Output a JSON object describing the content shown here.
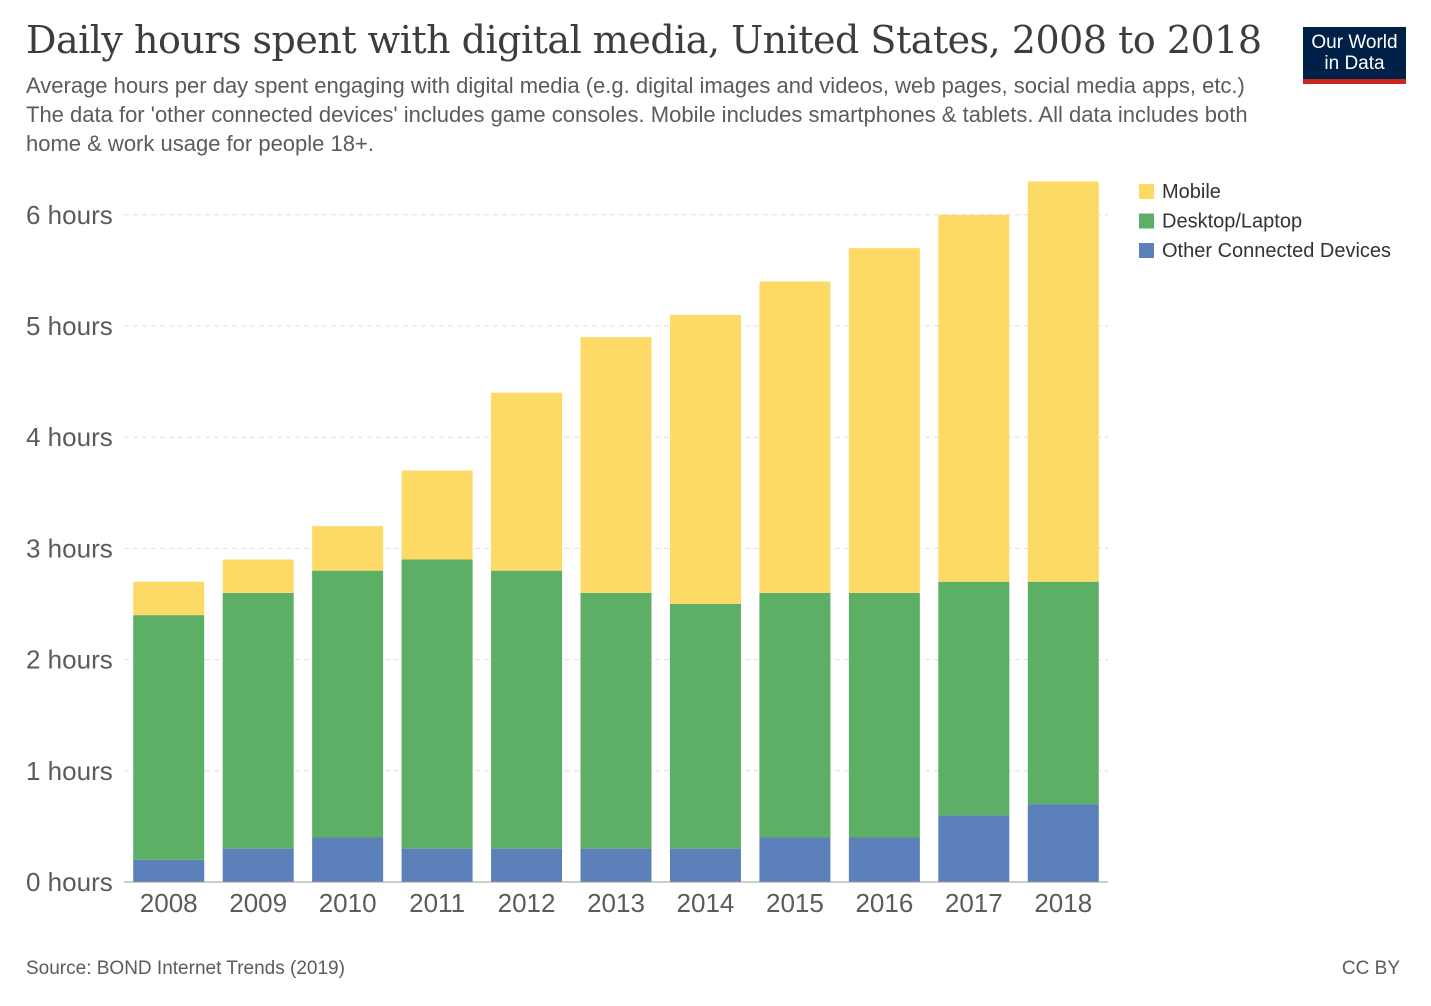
{
  "header": {
    "title": "Daily hours spent with digital media, United States, 2008 to 2018",
    "subtitle": "Average hours per day spent engaging with digital media (e.g. digital images and videos, web pages, social media apps, etc.) The data for 'other connected devices' includes game consoles. Mobile includes smartphones & tablets. All data includes both home & work usage for people 18+.",
    "logo_line1": "Our World",
    "logo_line2": "in Data"
  },
  "footer": {
    "source": "Source: BOND Internet Trends (2019)",
    "license": "CC BY"
  },
  "colors": {
    "Mobile": "#fdd966",
    "Desktop/Laptop": "#5daf66",
    "Other Connected Devices": "#5b80ba"
  },
  "chart_data": {
    "type": "bar",
    "stacked": true,
    "categories": [
      "2008",
      "2009",
      "2010",
      "2011",
      "2012",
      "2013",
      "2014",
      "2015",
      "2016",
      "2017",
      "2018"
    ],
    "series": [
      {
        "name": "Other Connected Devices",
        "values": [
          0.2,
          0.3,
          0.4,
          0.3,
          0.3,
          0.3,
          0.3,
          0.4,
          0.4,
          0.6,
          0.7
        ]
      },
      {
        "name": "Desktop/Laptop",
        "values": [
          2.2,
          2.3,
          2.4,
          2.6,
          2.5,
          2.3,
          2.2,
          2.2,
          2.2,
          2.1,
          2.0
        ]
      },
      {
        "name": "Mobile",
        "values": [
          0.3,
          0.3,
          0.4,
          0.8,
          1.6,
          2.3,
          2.6,
          2.8,
          3.1,
          3.3,
          3.6
        ]
      }
    ],
    "legend": [
      "Mobile",
      "Desktop/Laptop",
      "Other Connected Devices"
    ],
    "legend_position": "top-right",
    "y_ticks": [
      {
        "value": 0,
        "label": "0 hours"
      },
      {
        "value": 1,
        "label": "1 hours"
      },
      {
        "value": 2,
        "label": "2 hours"
      },
      {
        "value": 3,
        "label": "3 hours"
      },
      {
        "value": 4,
        "label": "4 hours"
      },
      {
        "value": 5,
        "label": "5 hours"
      },
      {
        "value": 6,
        "label": "6 hours"
      }
    ],
    "ylim": [
      0,
      6.3
    ],
    "grid": "horizontal-dashed"
  }
}
